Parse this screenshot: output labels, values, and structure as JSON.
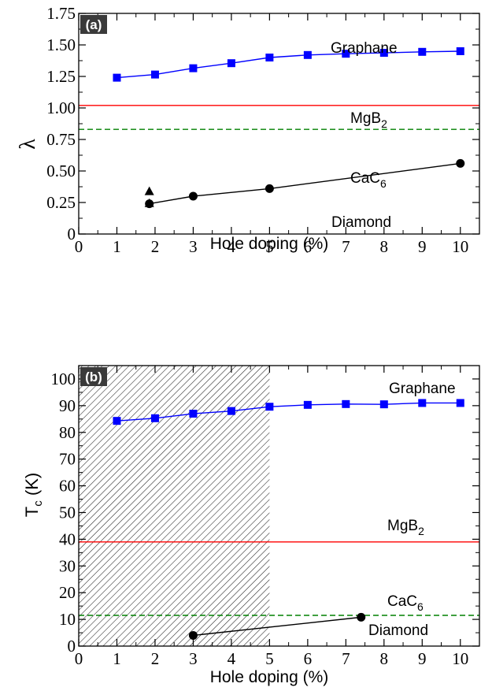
{
  "chart_data": [
    {
      "type": "line",
      "panel_label": "(a)",
      "ylabel_symbol": "λ",
      "xlabel": "Hole doping (%)",
      "xlim": [
        0,
        10.5
      ],
      "ylim": [
        0,
        1.75
      ],
      "xticks": [
        0,
        1,
        2,
        3,
        4,
        5,
        6,
        7,
        8,
        9,
        10
      ],
      "yticks": [
        0,
        0.25,
        0.5,
        0.75,
        1.0,
        1.25,
        1.5,
        1.75
      ],
      "ytick_labels": [
        "0",
        "0.25",
        "0.50",
        "0.75",
        "1.00",
        "1.25",
        "1.50",
        "1.75"
      ],
      "series": [
        {
          "name": "Graphane",
          "marker": "square",
          "color": "#0000ff",
          "x": [
            1,
            2,
            3,
            4,
            5,
            6,
            7,
            8,
            9,
            10
          ],
          "y": [
            1.24,
            1.265,
            1.315,
            1.355,
            1.4,
            1.42,
            1.43,
            1.437,
            1.445,
            1.45
          ]
        },
        {
          "name": "Diamond",
          "marker": "circle",
          "color": "#000000",
          "x": [
            1.85,
            3,
            5,
            10
          ],
          "y": [
            0.24,
            0.3,
            0.36,
            0.56
          ]
        },
        {
          "name": "",
          "marker": "triangle",
          "color": "#000000",
          "line": false,
          "x": [
            1.85,
            1.85
          ],
          "y": [
            0.34,
            0.245
          ]
        }
      ],
      "reference_lines": [
        {
          "label_base": "MgB",
          "label_sub": "2",
          "y": 1.02,
          "style": "solid",
          "color": "#ff0000"
        },
        {
          "label_base": "CaC",
          "label_sub": "6",
          "y": 0.83,
          "style": "dashed",
          "color": "#008000"
        }
      ]
    },
    {
      "type": "line",
      "panel_label": "(b)",
      "ylabel_base": "T",
      "ylabel_sub": "c",
      "ylabel_unit": " (K)",
      "xlabel": "Hole doping (%)",
      "xlim": [
        0,
        10.5
      ],
      "ylim": [
        0,
        105
      ],
      "xticks": [
        0,
        1,
        2,
        3,
        4,
        5,
        6,
        7,
        8,
        9,
        10
      ],
      "yticks": [
        0,
        10,
        20,
        30,
        40,
        50,
        60,
        70,
        80,
        90,
        100
      ],
      "ytick_labels": [
        "0",
        "10",
        "20",
        "30",
        "40",
        "50",
        "60",
        "70",
        "80",
        "90",
        "100"
      ],
      "shaded_region": {
        "x": [
          0,
          5
        ],
        "pattern": "hatched"
      },
      "series": [
        {
          "name": "Graphane",
          "marker": "square",
          "color": "#0000ff",
          "x": [
            1,
            2,
            3,
            4,
            5,
            6,
            7,
            8,
            9,
            10
          ],
          "y": [
            84.3,
            85.3,
            87,
            88,
            89.6,
            90.3,
            90.6,
            90.5,
            91,
            91
          ]
        },
        {
          "name": "Diamond",
          "marker": "circle",
          "color": "#000000",
          "x": [
            3,
            7.4
          ],
          "y": [
            4,
            10.8
          ]
        }
      ],
      "reference_lines": [
        {
          "label_base": "MgB",
          "label_sub": "2",
          "y": 39,
          "style": "solid",
          "color": "#ff0000"
        },
        {
          "label_base": "CaC",
          "label_sub": "6",
          "y": 11.5,
          "style": "dashed",
          "color": "#008000"
        }
      ]
    }
  ]
}
